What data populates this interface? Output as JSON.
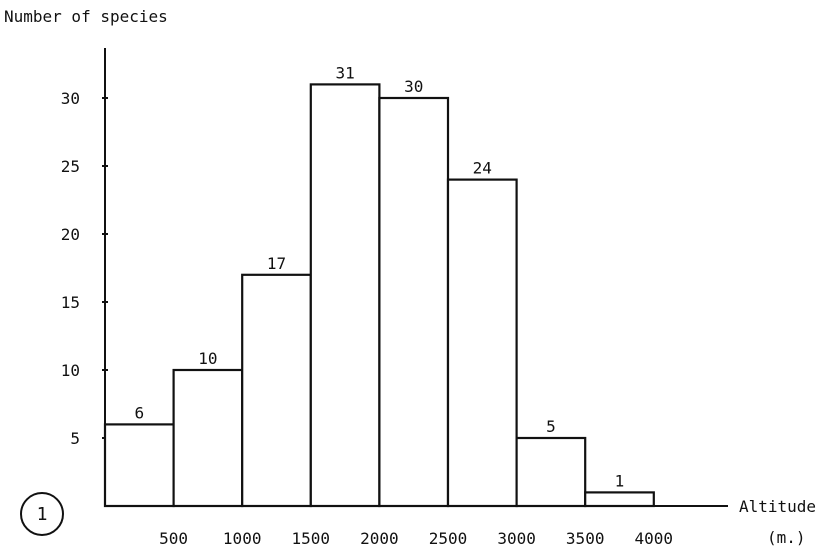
{
  "chart_data": {
    "type": "bar",
    "ylabel": "Number of species",
    "xlabel": [
      "Altitude",
      "(m.)"
    ],
    "x_tick_labels": [
      "500",
      "1000",
      "1500",
      "2000",
      "2500",
      "3000",
      "3500",
      "4000"
    ],
    "y_ticks": [
      5,
      10,
      15,
      20,
      25,
      30
    ],
    "bins": [
      {
        "from": 0,
        "to": 500,
        "value": 6
      },
      {
        "from": 500,
        "to": 1000,
        "value": 10
      },
      {
        "from": 1000,
        "to": 1500,
        "value": 17
      },
      {
        "from": 1500,
        "to": 2000,
        "value": 31
      },
      {
        "from": 2000,
        "to": 2500,
        "value": 30
      },
      {
        "from": 2500,
        "to": 3000,
        "value": 24
      },
      {
        "from": 3000,
        "to": 3500,
        "value": 5
      },
      {
        "from": 3500,
        "to": 4000,
        "value": 1
      }
    ],
    "figure_number": "1"
  }
}
